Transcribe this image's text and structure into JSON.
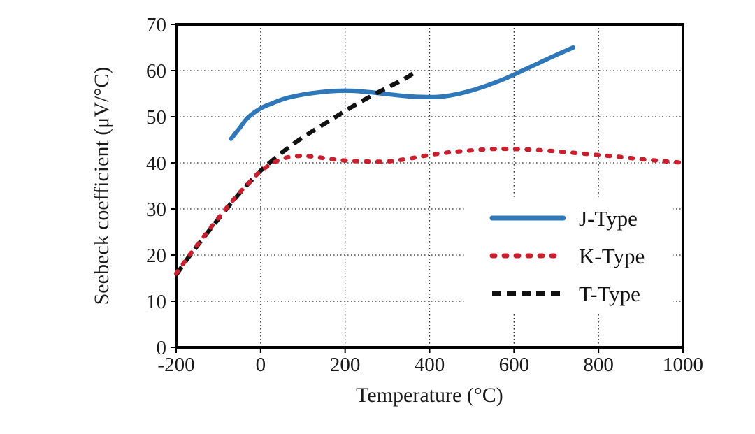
{
  "chart_data": {
    "type": "line",
    "title": "",
    "xlabel": "Temperature (°C)",
    "ylabel": "Seebeck coefficient (μV/°C)",
    "xlim": [
      -200,
      1000
    ],
    "ylim": [
      0,
      70
    ],
    "x_ticks": [
      -200,
      0,
      200,
      400,
      600,
      800,
      1000
    ],
    "y_ticks": [
      0,
      10,
      20,
      30,
      40,
      50,
      60,
      70
    ],
    "grid": "dotted",
    "grid_color": "#2f2f2f",
    "frame_color": "#000000",
    "legend_position": "inside-right",
    "series": [
      {
        "name": "J-Type",
        "color": "#2e77b8",
        "style": "solid",
        "points": [
          [
            -70,
            45.2
          ],
          [
            -50,
            47.5
          ],
          [
            -30,
            49.8
          ],
          [
            0,
            51.8
          ],
          [
            30,
            53.0
          ],
          [
            60,
            54.0
          ],
          [
            100,
            54.8
          ],
          [
            140,
            55.3
          ],
          [
            180,
            55.6
          ],
          [
            220,
            55.6
          ],
          [
            260,
            55.3
          ],
          [
            300,
            54.9
          ],
          [
            340,
            54.5
          ],
          [
            380,
            54.3
          ],
          [
            420,
            54.3
          ],
          [
            460,
            54.8
          ],
          [
            500,
            55.7
          ],
          [
            540,
            56.9
          ],
          [
            580,
            58.3
          ],
          [
            620,
            60.0
          ],
          [
            660,
            61.7
          ],
          [
            700,
            63.4
          ],
          [
            740,
            65.0
          ]
        ]
      },
      {
        "name": "K-Type",
        "color": "#c9202f",
        "style": "dotted",
        "points": [
          [
            -200,
            16.0
          ],
          [
            -170,
            19.8
          ],
          [
            -140,
            23.4
          ],
          [
            -110,
            26.9
          ],
          [
            -80,
            30.3
          ],
          [
            -50,
            33.5
          ],
          [
            -20,
            36.4
          ],
          [
            0,
            38.2
          ],
          [
            30,
            40.0
          ],
          [
            60,
            41.1
          ],
          [
            90,
            41.5
          ],
          [
            120,
            41.4
          ],
          [
            160,
            40.9
          ],
          [
            200,
            40.5
          ],
          [
            250,
            40.3
          ],
          [
            300,
            40.3
          ],
          [
            350,
            40.9
          ],
          [
            400,
            41.7
          ],
          [
            450,
            42.3
          ],
          [
            500,
            42.7
          ],
          [
            550,
            43.0
          ],
          [
            600,
            43.0
          ],
          [
            650,
            42.8
          ],
          [
            700,
            42.5
          ],
          [
            750,
            42.1
          ],
          [
            800,
            41.7
          ],
          [
            850,
            41.3
          ],
          [
            900,
            40.8
          ],
          [
            950,
            40.4
          ],
          [
            990,
            40.1
          ]
        ]
      },
      {
        "name": "T-Type",
        "color": "#111111",
        "style": "dashed",
        "points": [
          [
            -200,
            15.7
          ],
          [
            -170,
            19.6
          ],
          [
            -140,
            23.2
          ],
          [
            -110,
            26.7
          ],
          [
            -80,
            30.1
          ],
          [
            -50,
            33.4
          ],
          [
            -20,
            36.4
          ],
          [
            0,
            38.3
          ],
          [
            30,
            40.7
          ],
          [
            60,
            42.9
          ],
          [
            90,
            44.9
          ],
          [
            120,
            46.7
          ],
          [
            150,
            48.4
          ],
          [
            180,
            50.1
          ],
          [
            210,
            51.8
          ],
          [
            240,
            53.4
          ],
          [
            270,
            54.9
          ],
          [
            300,
            56.3
          ],
          [
            330,
            57.7
          ],
          [
            350,
            58.7
          ],
          [
            370,
            60.0
          ]
        ]
      }
    ]
  }
}
